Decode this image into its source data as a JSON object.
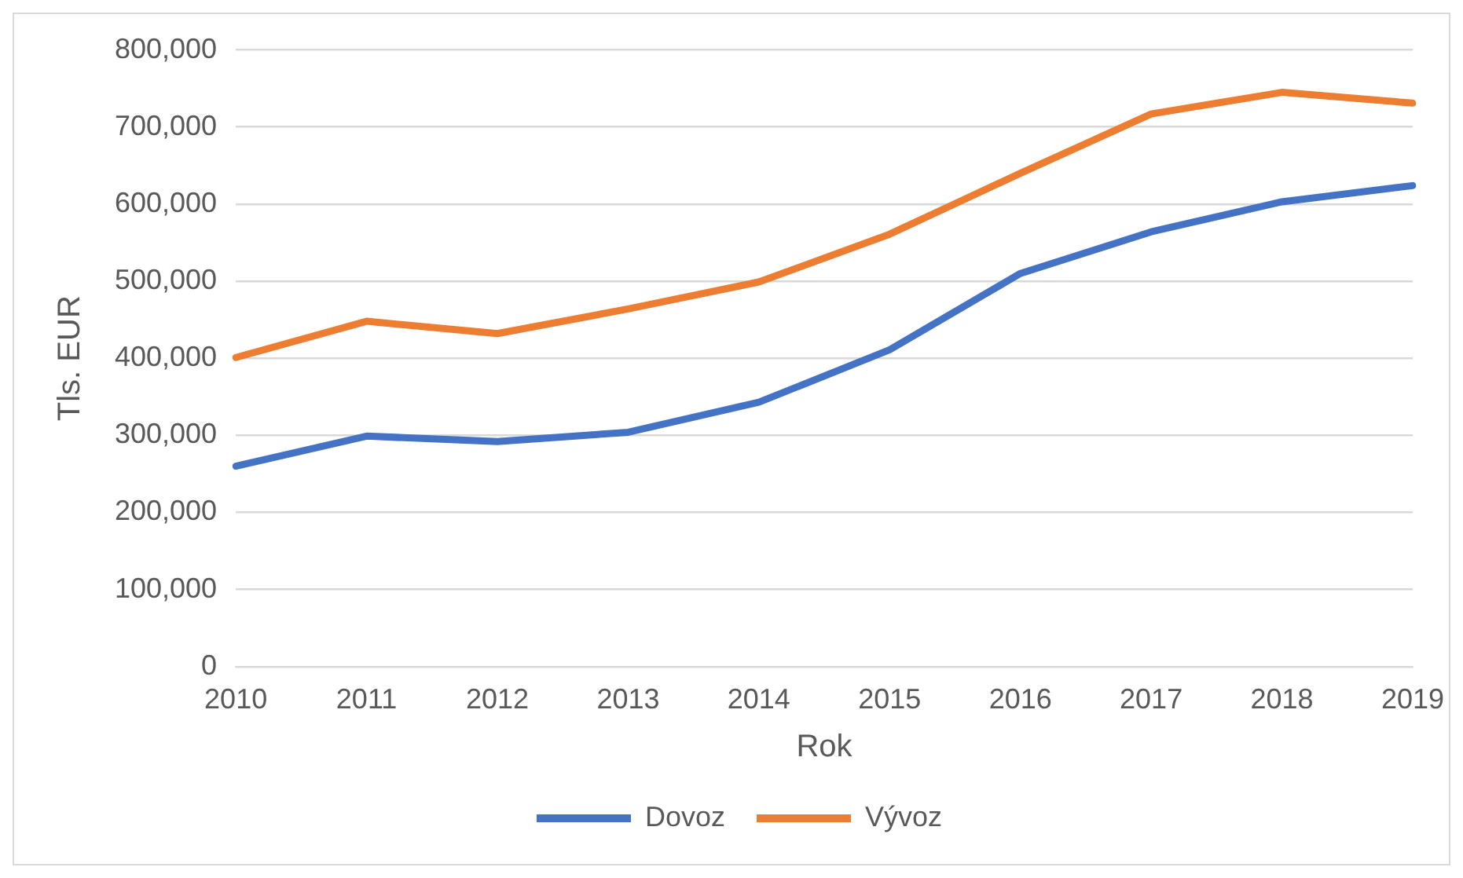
{
  "chart_data": {
    "type": "line",
    "xlabel": "Rok",
    "ylabel": "Tls. EUR",
    "categories": [
      "2010",
      "2011",
      "2012",
      "2013",
      "2014",
      "2015",
      "2016",
      "2017",
      "2018",
      "2019"
    ],
    "series": [
      {
        "name": "Dovoz",
        "color": "#4472c4",
        "values": [
          260000,
          299000,
          292000,
          304000,
          343000,
          411000,
          510000,
          564000,
          603000,
          624000
        ]
      },
      {
        "name": "Vývoz",
        "color": "#ed7d31",
        "values": [
          401000,
          448000,
          432000,
          464000,
          499000,
          561000,
          640000,
          717000,
          745000,
          731000
        ]
      }
    ],
    "ylim": [
      0,
      800000
    ],
    "yticks": [
      {
        "value": 0,
        "label": "0"
      },
      {
        "value": 100000,
        "label": "100,000"
      },
      {
        "value": 200000,
        "label": "200,000"
      },
      {
        "value": 300000,
        "label": "300,000"
      },
      {
        "value": 400000,
        "label": "400,000"
      },
      {
        "value": 500000,
        "label": "500,000"
      },
      {
        "value": 600000,
        "label": "600,000"
      },
      {
        "value": 700000,
        "label": "700,000"
      },
      {
        "value": 800000,
        "label": "800,000"
      }
    ],
    "grid": "y",
    "legend": "bottom",
    "marker": "none",
    "line_style": "solid"
  }
}
